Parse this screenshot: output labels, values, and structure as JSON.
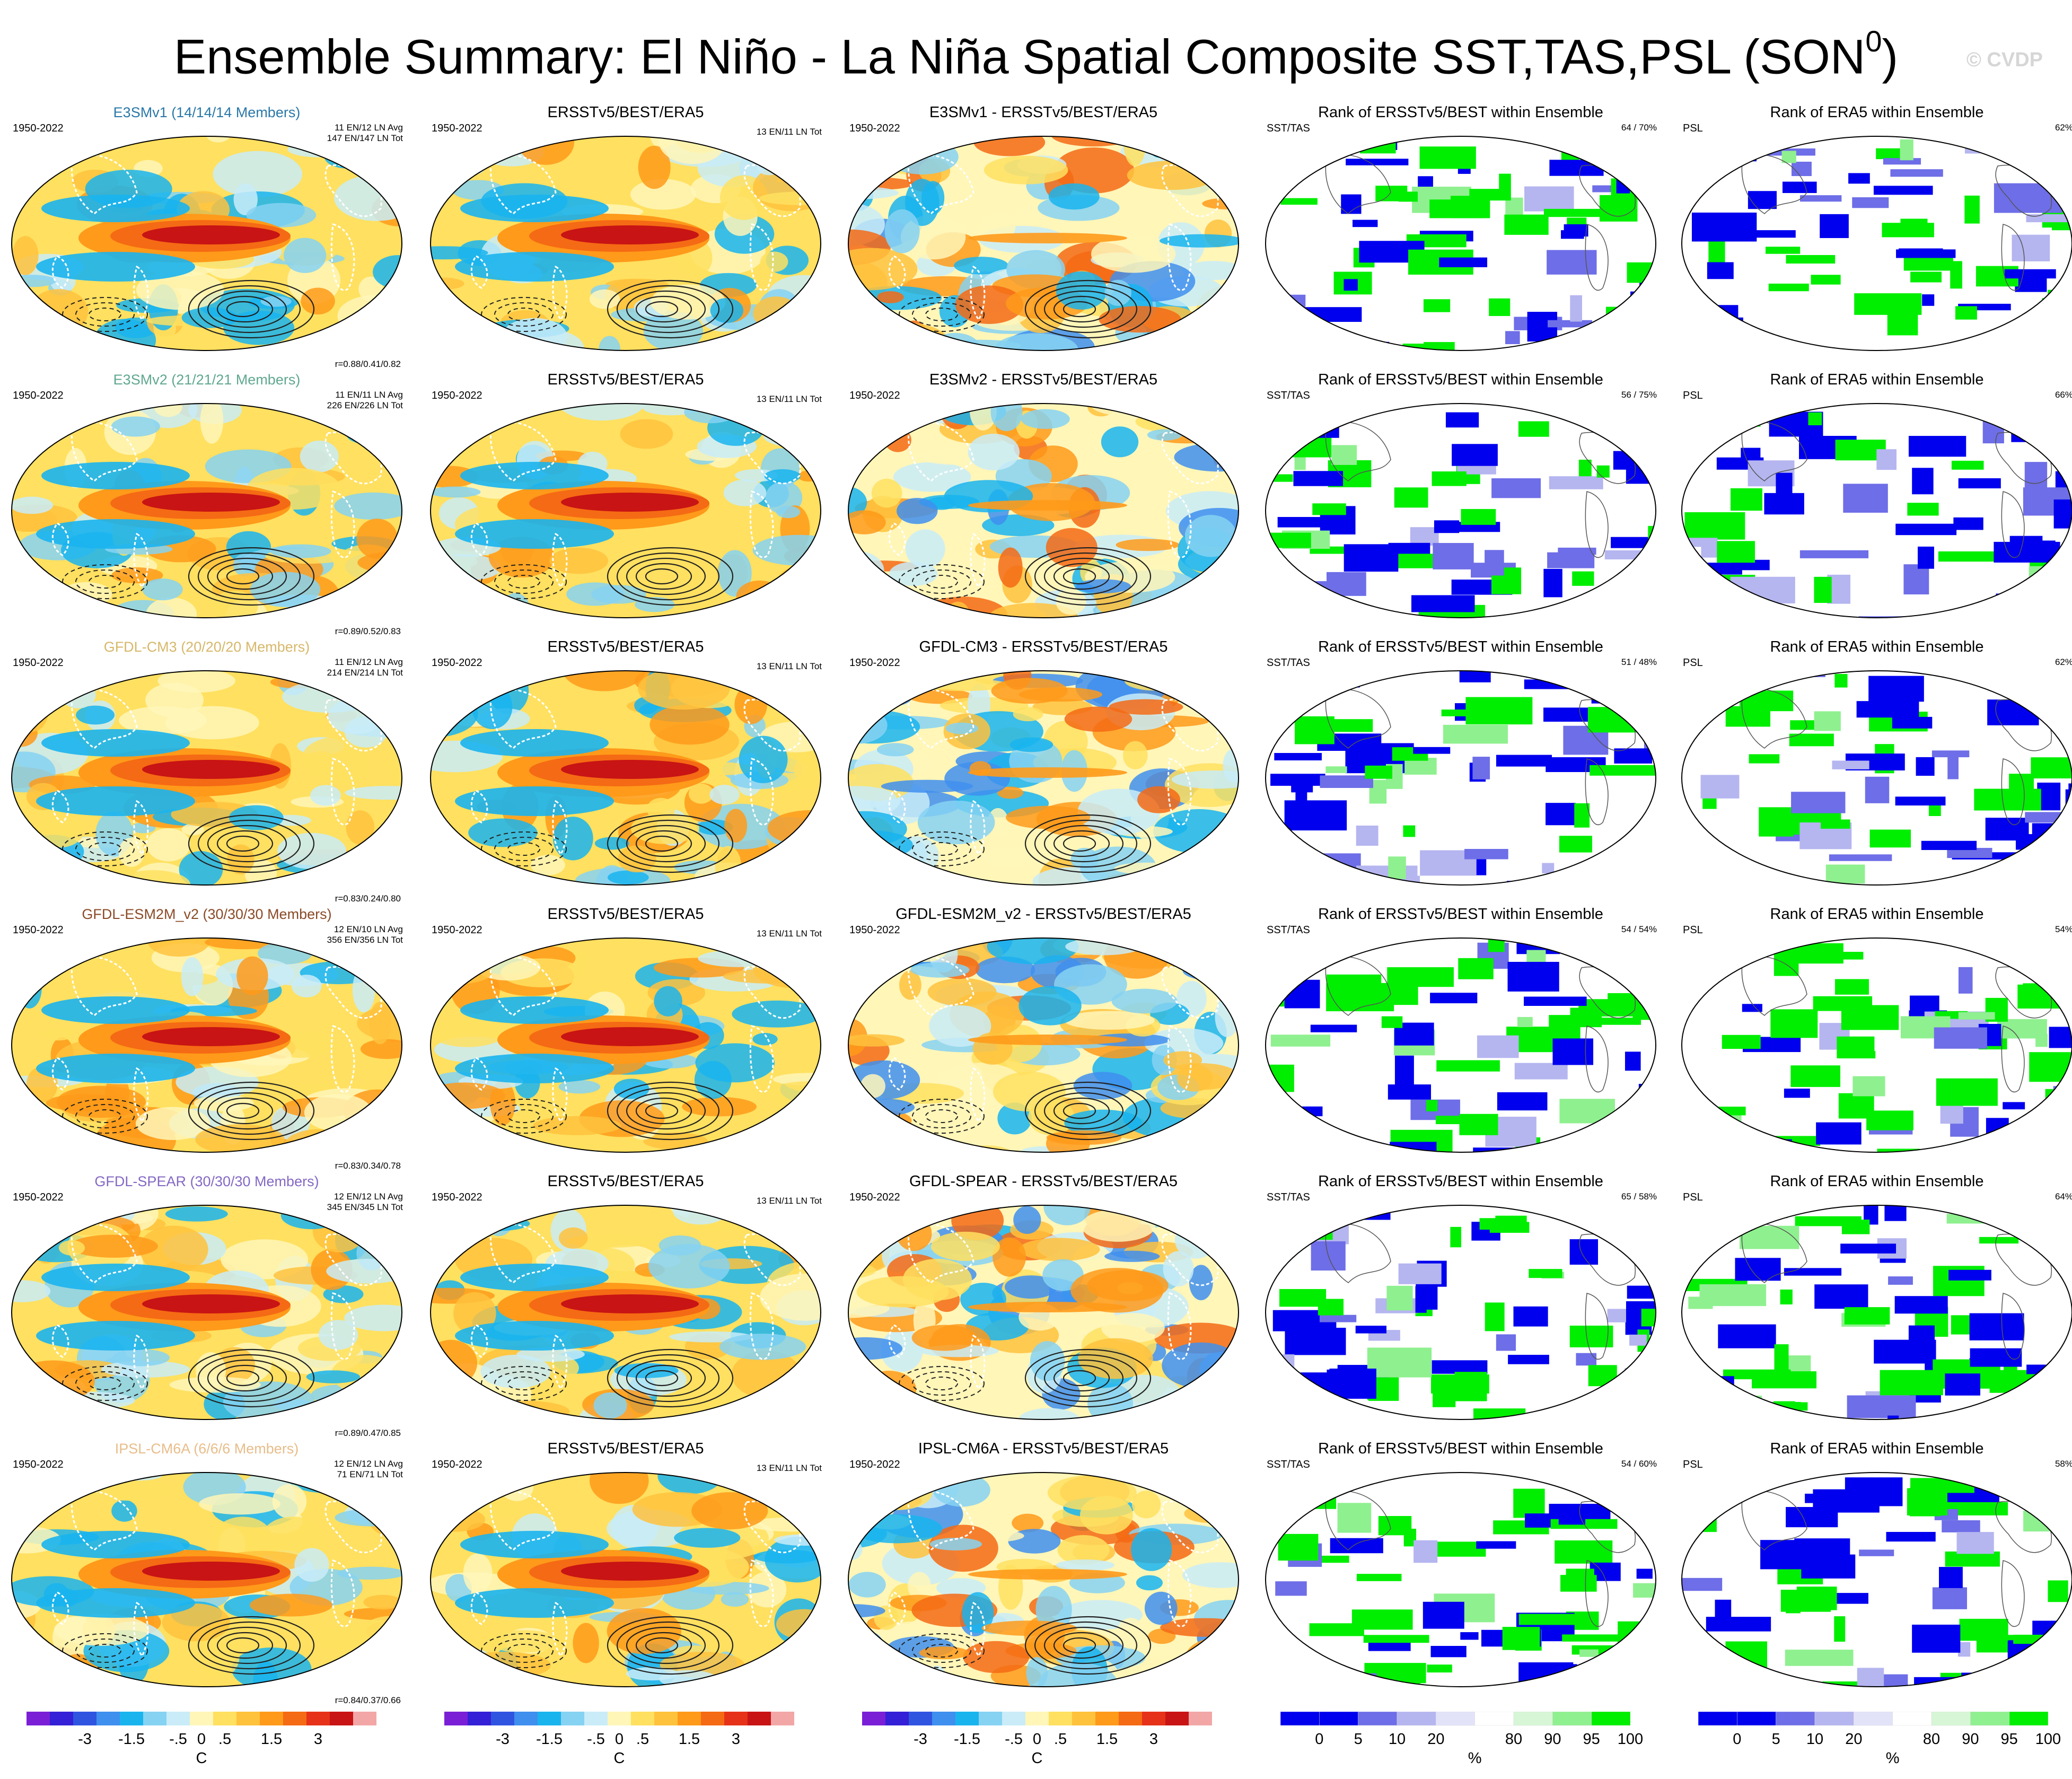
{
  "page": {
    "title_main": "Ensemble Summary: El Niño - La Niña Spatial Composite SST,TAS,PSL (SON",
    "title_sup": "0",
    "title_end": ")",
    "copyright": "© CVDP"
  },
  "colors": {
    "temperature_palette": [
      "#7a1fd6",
      "#3420d6",
      "#2f55e0",
      "#3f8fee",
      "#19b4ee",
      "#86d2f2",
      "#c9ecf8",
      "#fff6b8",
      "#ffe060",
      "#ffc23d",
      "#ff9a1a",
      "#f56a14",
      "#e63218",
      "#c81414",
      "#f2a6a6"
    ],
    "rank_palette": [
      "#0000ee",
      "#6e6ee8",
      "#b5b5f0",
      "#e2e2f8",
      "#ffffff",
      "#d6f6d6",
      "#8ff08f",
      "#00ee00"
    ],
    "contour_line": "#222222",
    "land_outline": "#ffffff"
  },
  "panel_types": {
    "obs_title": "ERSSTv5/BEST/ERA5",
    "obs_tag": "13 EN/11 LN Tot",
    "rank_sst_title": "Rank of ERSSTv5/BEST within Ensemble",
    "rank_sst_tag": "SST/TAS",
    "rank_psl_title": "Rank of ERA5 within Ensemble",
    "rank_psl_tag": "PSL",
    "period": "1950-2022"
  },
  "rows": [
    {
      "model": "E3SMv1",
      "model_title": "E3SMv1 (14/14/14 Members)",
      "model_color": "#2a78a8",
      "avg_line": "11 EN/12 LN Avg",
      "tot_line": "147 EN/147 LN Tot",
      "corr": "r=0.88/0.41/0.82",
      "diff_title": "E3SMv1 - ERSSTv5/BEST/ERA5",
      "rank_sst": "64 /  70%",
      "rank_psl": "62%"
    },
    {
      "model": "E3SMv2",
      "model_title": "E3SMv2 (21/21/21 Members)",
      "model_color": "#5fa88e",
      "avg_line": "11 EN/11 LN Avg",
      "tot_line": "226 EN/226 LN Tot",
      "corr": "r=0.89/0.52/0.83",
      "diff_title": "E3SMv2 - ERSSTv5/BEST/ERA5",
      "rank_sst": "56 /  75%",
      "rank_psl": "66%"
    },
    {
      "model": "GFDL-CM3",
      "model_title": "GFDL-CM3 (20/20/20 Members)",
      "model_color": "#d7b86a",
      "avg_line": "11 EN/12 LN Avg",
      "tot_line": "214 EN/214 LN Tot",
      "corr": "r=0.83/0.24/0.80",
      "diff_title": "GFDL-CM3 - ERSSTv5/BEST/ERA5",
      "rank_sst": "51 /  48%",
      "rank_psl": "62%"
    },
    {
      "model": "GFDL-ESM2M_v2",
      "model_title": "GFDL-ESM2M_v2 (30/30/30 Members)",
      "model_color": "#8a4a26",
      "avg_line": "12 EN/10 LN Avg",
      "tot_line": "356 EN/356 LN Tot",
      "corr": "r=0.83/0.34/0.78",
      "diff_title": "GFDL-ESM2M_v2 - ERSSTv5/BEST/ERA5",
      "rank_sst": "54 /  54%",
      "rank_psl": "54%"
    },
    {
      "model": "GFDL-SPEAR",
      "model_title": "GFDL-SPEAR (30/30/30 Members)",
      "model_color": "#8468c4",
      "avg_line": "12 EN/12 LN Avg",
      "tot_line": "345 EN/345 LN Tot",
      "corr": "r=0.89/0.47/0.85",
      "diff_title": "GFDL-SPEAR - ERSSTv5/BEST/ERA5",
      "rank_sst": "65 /  58%",
      "rank_psl": "64%"
    },
    {
      "model": "IPSL-CM6A",
      "model_title": "IPSL-CM6A (6/6/6 Members)",
      "model_color": "#e8bd8a",
      "avg_line": "12 EN/12 LN Avg",
      "tot_line": "71 EN/71 LN Tot",
      "corr": "r=0.84/0.37/0.66",
      "diff_title": "IPSL-CM6A - ERSSTv5/BEST/ERA5",
      "rank_sst": "54 /  60%",
      "rank_psl": "58%"
    }
  ],
  "colorbars": {
    "temperature": {
      "ticks": [
        "-3",
        "-1.5",
        "-.5",
        "0",
        ".5",
        "1.5",
        "3"
      ],
      "unit": "C"
    },
    "rank": {
      "ticks": [
        "0",
        "5",
        "10",
        "20",
        "80",
        "90",
        "95",
        "100"
      ],
      "unit": "%"
    }
  },
  "chart_data": {
    "type": "heatmap",
    "description_of_grid": "6 model rows x 5 columns of global maps",
    "columns": [
      "model composite",
      "observed composite",
      "model minus observed",
      "rank SST/TAS",
      "rank PSL"
    ],
    "series": [
      {
        "name": "E3SMv1",
        "correlations": [
          0.88,
          0.41,
          0.82
        ],
        "rank_sst_pct": 64,
        "rank_tas_pct": 70,
        "rank_psl_pct": 62,
        "en_avg": 11,
        "ln_avg": 12,
        "en_tot": 147,
        "ln_tot": 147
      },
      {
        "name": "E3SMv2",
        "correlations": [
          0.89,
          0.52,
          0.83
        ],
        "rank_sst_pct": 56,
        "rank_tas_pct": 75,
        "rank_psl_pct": 66,
        "en_avg": 11,
        "ln_avg": 11,
        "en_tot": 226,
        "ln_tot": 226
      },
      {
        "name": "GFDL-CM3",
        "correlations": [
          0.83,
          0.24,
          0.8
        ],
        "rank_sst_pct": 51,
        "rank_tas_pct": 48,
        "rank_psl_pct": 62,
        "en_avg": 11,
        "ln_avg": 12,
        "en_tot": 214,
        "ln_tot": 214
      },
      {
        "name": "GFDL-ESM2M_v2",
        "correlations": [
          0.83,
          0.34,
          0.78
        ],
        "rank_sst_pct": 54,
        "rank_tas_pct": 54,
        "rank_psl_pct": 54,
        "en_avg": 12,
        "ln_avg": 10,
        "en_tot": 356,
        "ln_tot": 356
      },
      {
        "name": "GFDL-SPEAR",
        "correlations": [
          0.89,
          0.47,
          0.85
        ],
        "rank_sst_pct": 65,
        "rank_tas_pct": 58,
        "rank_psl_pct": 64,
        "en_avg": 12,
        "ln_avg": 12,
        "en_tot": 345,
        "ln_tot": 345
      },
      {
        "name": "IPSL-CM6A",
        "correlations": [
          0.84,
          0.37,
          0.66
        ],
        "rank_sst_pct": 54,
        "rank_tas_pct": 60,
        "rank_psl_pct": 58,
        "en_avg": 12,
        "ln_avg": 12,
        "en_tot": 71,
        "ln_tot": 71
      }
    ],
    "temperature_levels_C": [
      -3,
      -1.5,
      -0.5,
      0,
      0.5,
      1.5,
      3
    ],
    "rank_levels_pct": [
      0,
      5,
      10,
      20,
      80,
      90,
      95,
      100
    ],
    "title": "Ensemble Summary: El Niño - La Niña Spatial Composite SST,TAS,PSL (SON0)"
  }
}
